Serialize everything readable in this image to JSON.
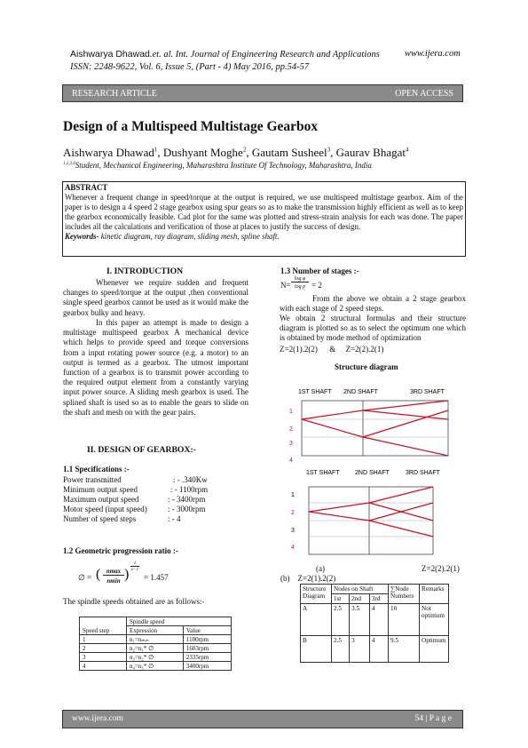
{
  "header": {
    "authors": "Aishwarya Dhawad",
    "journal": ".et. al. Int. Journal of Engineering Research and Applications",
    "url": "www.ijera.com",
    "issn": "ISSN: 2248-9622, Vol. 6, Issue 5, (Part - 4) May 2016, pp.54-57"
  },
  "banner": {
    "left": "RESEARCH ARTICLE",
    "right": "OPEN ACCESS"
  },
  "title": "Design of a Multispeed Multistage Gearbox",
  "authors": [
    {
      "name": "Aishwarya Dhawad",
      "sup": "1",
      "sep": ", "
    },
    {
      "name": "Dushyant Moghe",
      "sup": "2",
      "sep": ", "
    },
    {
      "name": "Gautam Susheel",
      "sup": "3",
      "sep": ", "
    },
    {
      "name": "Gaurav Bhagat",
      "sup": "4",
      "sep": ""
    }
  ],
  "affiliation": {
    "sup": "1,2,3,4",
    "text": "Student, Mechanical Engineering, Maharashtra Institute Of Technology, Maharashtra, India"
  },
  "abstract": {
    "heading": "ABSTRACT",
    "text": "Whenever a frequent change in speed/torque at the output is required, we use multispeed multistage gearbox. Aim of the paper is to design a 4 speed 2 stage gearbox using spur gears so as to make the transmission highly efficient as well as to keep the gearbox economically feasible. Cad plot for the same was plotted and stress-strain analysis for each was done. The paper includes all the calculations and verification of those at places to justify the success of design.",
    "keywords_label": "Keywords-",
    "keywords": " kinetic diagram, ray diagram, sliding mesh, spline shaft."
  },
  "intro": {
    "heading": "I.      INTRODUCTION",
    "p1": "Whenever we require sudden and frequent changes to speed/torque at the output ,then conventional single speed gearbox cannot be used as it would make the gearbox bulky and heavy.",
    "p2": "In this paper an attempt is made to design a multistage multispeed gearbox A mechanical device which helps to provide speed and torque conversions from a input rotating power source (e.g. a motor) to an output is termed as a gearbox. The utmost important function of a gearbox is to transmit power according to the required output element from a constantly varying input power source. A sliding mesh gearbox is used. The splined shaft is used so as to enable the gears to slide on the shaft and mesh on with the gear pairs."
  },
  "design": {
    "heading": "II.      DESIGN OF GEARBOX:-",
    "spec_heading": "1.1  Specifications :-",
    "specs": [
      {
        "label": "Power transmitted",
        "value": ": - .340Kw"
      },
      {
        "label": "Minimum output speed",
        "value": ": - 1100rpm"
      },
      {
        "label": "Maximum output speed",
        "value": ": - 3400rpm"
      },
      {
        "label": "Motor speed (input speed)",
        "value": ": - 3000rpm"
      },
      {
        "label": "Number of speed steps",
        "value": ": - 4"
      }
    ],
    "gp_heading": "1.2  Geometric progression ratio :-",
    "formula_lhs": "∅  =",
    "formula_num": "nmax",
    "formula_den": "nmin",
    "formula_exp_num": "1",
    "formula_exp_den": "z−1",
    "formula_result": "= 1.457",
    "spindle_text": "The spindle speeds obtained are as follows:-",
    "table": {
      "group_header": "Spindle speed",
      "headers": [
        "Speed step",
        "Expression",
        "Value"
      ],
      "rows": [
        [
          "1",
          "n₁=nₘᵢₙ",
          "1100rpm"
        ],
        [
          "2",
          "n₂=n₁* ∅",
          "1603rpm"
        ],
        [
          "3",
          "n₃=n₂* ∅",
          "2335rpm"
        ],
        [
          "4",
          "n₄=n₃* ∅",
          "3400rpm"
        ]
      ]
    }
  },
  "stages": {
    "heading": "1.3        Number of stages :-",
    "formula_lhs": "N=",
    "formula_num": "log φ",
    "formula_den": "log p",
    "formula_rhs": "= 2",
    "p1": "From the above we obtain a 2 stage gearbox with each stage of 2 speed steps.",
    "p2": "We obtain 2 structural formulas and their structure diagram is plotted so as to select the optimum one which is obtained by mode method of optimization",
    "formulas": "Z=2(1).2(2)      &     Z=2(2).2(1)",
    "diagram_title": "Structure diagram",
    "diagram1": {
      "shafts": [
        "1ST SHAFT",
        "2ND SHAFT",
        "3RD SHAFT"
      ],
      "levels": [
        "1",
        "2",
        "3",
        "4"
      ]
    },
    "diagram2": {
      "shafts": [
        "1ST SHAFT",
        "2ND SHAFT",
        "3RD SHAFT"
      ],
      "levels": [
        "1",
        "2",
        "3",
        "4"
      ]
    },
    "caption_a": "(a)",
    "caption_a_formula": "Z=2(2).2(1)",
    "caption_b": "(b)    Z=2(1).2(2)",
    "line_color": "#cc1122",
    "ratings_table": {
      "headers": [
        "Structure Diagram",
        "Nodes on Shaft",
        "∑Node Numbers",
        "Remarks"
      ],
      "subheaders": [
        "1st",
        "2nd",
        "3rd"
      ],
      "rows": [
        {
          "diagram": "A",
          "n1": "2.5",
          "n2": "3.5",
          "n3": "4",
          "sum": "10",
          "remark": "Not optimum"
        },
        {
          "diagram": "B",
          "n1": "2.5",
          "n2": "3",
          "n3": "4",
          "sum": "9.5",
          "remark": "Optimum"
        }
      ]
    }
  },
  "footer": {
    "url": "www.ijera.com",
    "page": "54 | P a g e"
  }
}
